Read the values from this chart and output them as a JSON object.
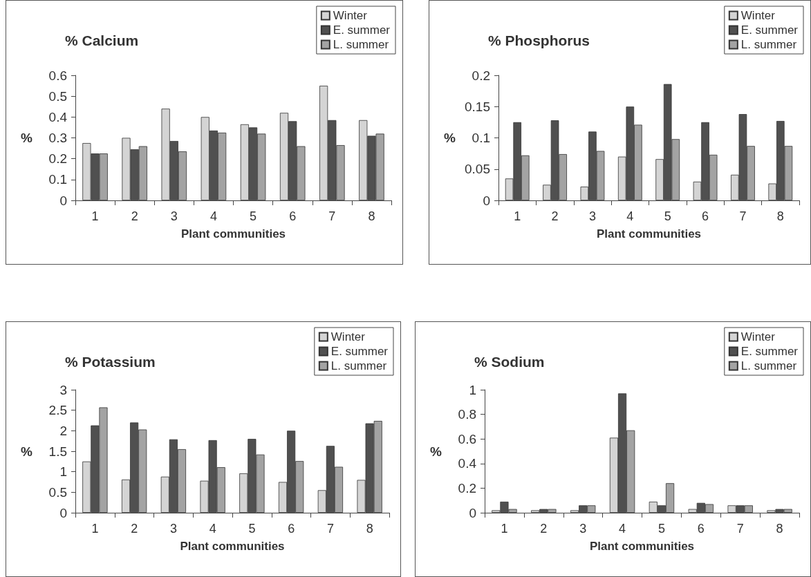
{
  "chart_data": [
    {
      "type": "bar",
      "title": "% Calcium",
      "xlabel": "Plant communities",
      "ylabel": "%",
      "categories": [
        "1",
        "2",
        "3",
        "4",
        "5",
        "6",
        "7",
        "8"
      ],
      "series": [
        {
          "name": "Winter",
          "color": "#d4d4d4",
          "values": [
            0.275,
            0.3,
            0.44,
            0.4,
            0.365,
            0.42,
            0.55,
            0.385
          ]
        },
        {
          "name": "E. summer",
          "color": "#505050",
          "values": [
            0.225,
            0.245,
            0.285,
            0.335,
            0.35,
            0.38,
            0.385,
            0.31
          ]
        },
        {
          "name": "L. summer",
          "color": "#a3a3a3",
          "values": [
            0.225,
            0.26,
            0.235,
            0.325,
            0.32,
            0.26,
            0.265,
            0.32
          ]
        }
      ],
      "ylim": [
        0,
        0.6
      ],
      "yticks": [
        0,
        0.1,
        0.2,
        0.3,
        0.4,
        0.5,
        0.6
      ],
      "grid": false,
      "legend": "top right"
    },
    {
      "type": "bar",
      "title": "% Phosphorus",
      "xlabel": "Plant communities",
      "ylabel": "%",
      "categories": [
        "1",
        "2",
        "3",
        "4",
        "5",
        "6",
        "7",
        "8"
      ],
      "series": [
        {
          "name": "Winter",
          "color": "#d4d4d4",
          "values": [
            0.035,
            0.025,
            0.022,
            0.07,
            0.066,
            0.03,
            0.041,
            0.027
          ]
        },
        {
          "name": "E. summer",
          "color": "#505050",
          "values": [
            0.125,
            0.128,
            0.11,
            0.15,
            0.186,
            0.125,
            0.138,
            0.127
          ]
        },
        {
          "name": "L. summer",
          "color": "#a3a3a3",
          "values": [
            0.072,
            0.074,
            0.079,
            0.121,
            0.098,
            0.073,
            0.087,
            0.087
          ]
        }
      ],
      "ylim": [
        0,
        0.2
      ],
      "yticks": [
        0,
        0.05,
        0.1,
        0.15,
        0.2
      ],
      "grid": false,
      "legend": "top right"
    },
    {
      "type": "bar",
      "title": "% Potassium",
      "xlabel": "Plant communities",
      "ylabel": "%",
      "categories": [
        "1",
        "2",
        "3",
        "4",
        "5",
        "6",
        "7",
        "8"
      ],
      "series": [
        {
          "name": "Winter",
          "color": "#d4d4d4",
          "values": [
            1.25,
            0.81,
            0.88,
            0.78,
            0.96,
            0.75,
            0.55,
            0.8
          ]
        },
        {
          "name": "E. summer",
          "color": "#505050",
          "values": [
            2.13,
            2.2,
            1.79,
            1.77,
            1.8,
            2.0,
            1.63,
            2.18
          ]
        },
        {
          "name": "L. summer",
          "color": "#a3a3a3",
          "values": [
            2.57,
            2.03,
            1.55,
            1.11,
            1.42,
            1.26,
            1.12,
            2.24
          ]
        }
      ],
      "ylim": [
        0,
        3
      ],
      "yticks": [
        0,
        0.5,
        1,
        1.5,
        2,
        2.5,
        3
      ],
      "grid": false,
      "legend": "top right"
    },
    {
      "type": "bar",
      "title": "% Sodium",
      "xlabel": "Plant communities",
      "ylabel": "%",
      "categories": [
        "1",
        "2",
        "3",
        "4",
        "5",
        "6",
        "7",
        "8"
      ],
      "series": [
        {
          "name": "Winter",
          "color": "#d4d4d4",
          "values": [
            0.02,
            0.02,
            0.02,
            0.61,
            0.09,
            0.03,
            0.06,
            0.02
          ]
        },
        {
          "name": "E. summer",
          "color": "#505050",
          "values": [
            0.09,
            0.03,
            0.06,
            0.97,
            0.06,
            0.08,
            0.06,
            0.03
          ]
        },
        {
          "name": "L. summer",
          "color": "#a3a3a3",
          "values": [
            0.03,
            0.03,
            0.06,
            0.67,
            0.24,
            0.07,
            0.06,
            0.03
          ]
        }
      ],
      "ylim": [
        0,
        1
      ],
      "yticks": [
        0,
        0.2,
        0.4,
        0.6,
        0.8,
        1
      ],
      "grid": false,
      "legend": "top right"
    }
  ]
}
